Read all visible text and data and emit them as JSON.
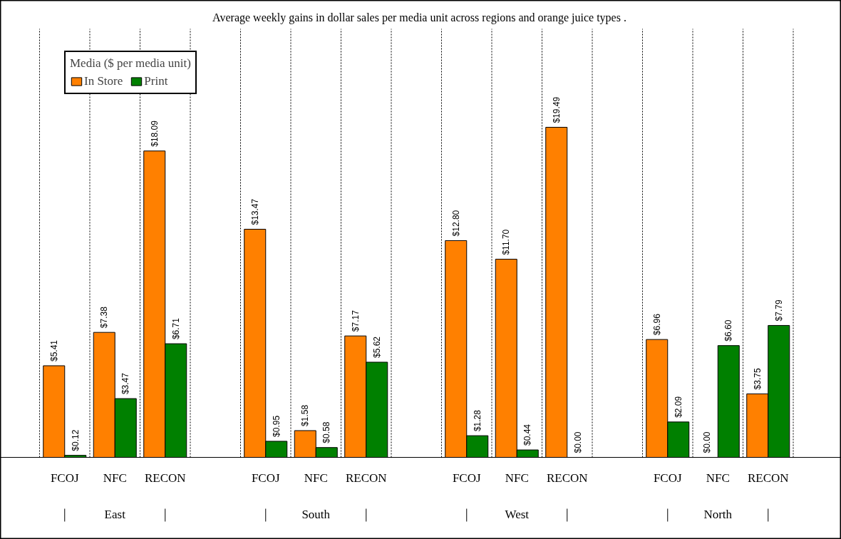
{
  "chart_data": {
    "type": "bar",
    "title": "Average weekly gains in dollar sales  per media unit across regions and orange juice types .",
    "legend_title": "Media ($ per media unit)",
    "categories": [
      "FCOJ",
      "NFC",
      "RECON",
      null,
      "FCOJ",
      "NFC",
      "RECON",
      null,
      "FCOJ",
      "NFC",
      "RECON",
      null,
      "FCOJ",
      "NFC",
      "RECON"
    ],
    "series": [
      {
        "name": "In Store",
        "color": "#ff8000",
        "values": [
          5.41,
          7.38,
          18.09,
          null,
          13.47,
          1.58,
          7.17,
          null,
          12.8,
          11.7,
          19.49,
          null,
          6.96,
          0.0,
          3.75
        ],
        "value_labels": [
          "$5.41",
          "$7.38",
          "$18.09",
          null,
          "$13.47",
          "$1.58",
          "$7.17",
          null,
          "$12.80",
          "$11.70",
          "$19.49",
          null,
          "$6.96",
          "$0.00",
          "$3.75"
        ]
      },
      {
        "name": "Print",
        "color": "#008000",
        "values": [
          0.12,
          3.47,
          6.71,
          null,
          0.95,
          0.58,
          5.62,
          null,
          1.28,
          0.44,
          0.0,
          null,
          2.09,
          6.6,
          7.79
        ],
        "value_labels": [
          "$0.12",
          "$3.47",
          "$6.71",
          null,
          "$0.95",
          "$0.58",
          "$5.62",
          null,
          "$1.28",
          "$0.44",
          "$0.00",
          null,
          "$2.09",
          "$6.60",
          "$7.79"
        ]
      }
    ],
    "annotations": [
      "East",
      "South",
      "West",
      "North"
    ],
    "grid": "x",
    "legend": "top left"
  }
}
